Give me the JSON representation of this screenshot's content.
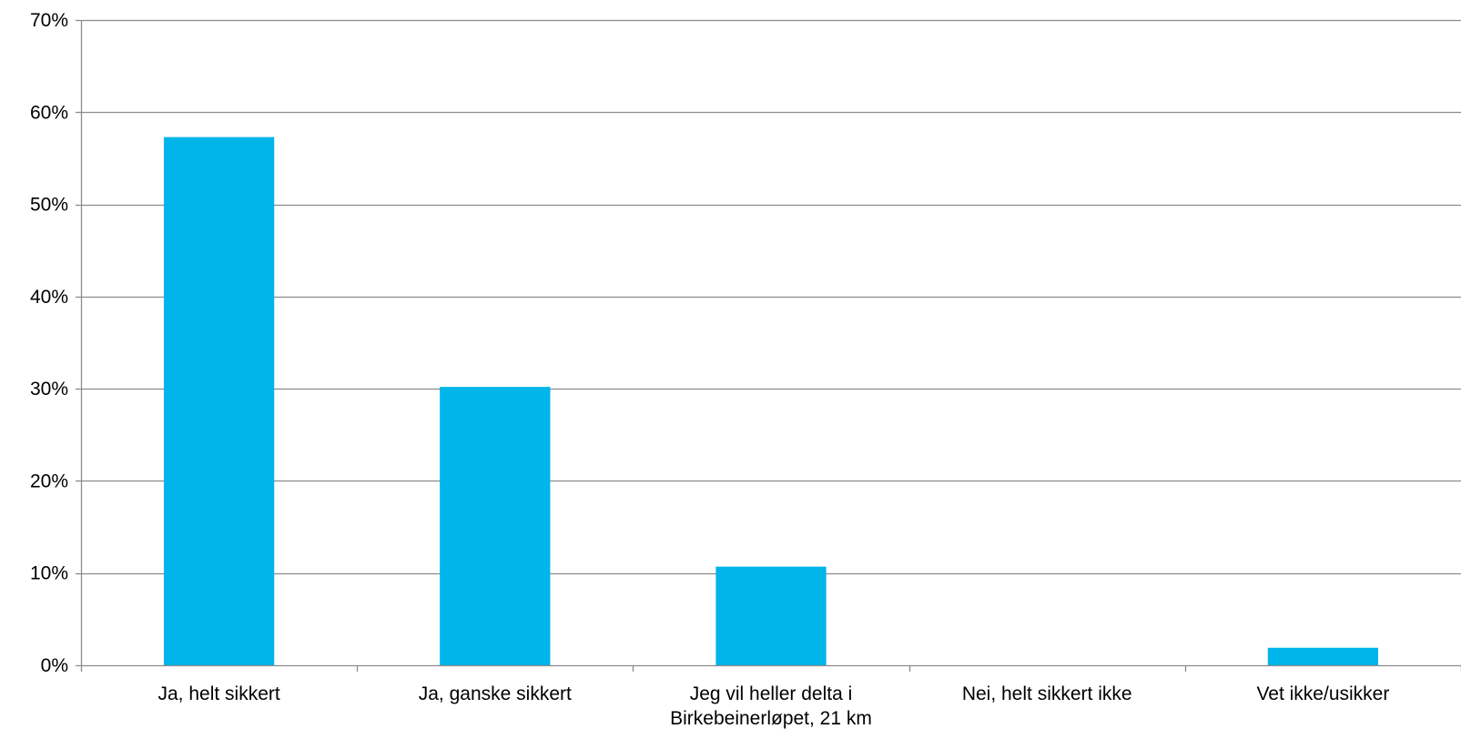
{
  "chart_data": {
    "type": "bar",
    "categories": [
      [
        "Ja, helt sikkert"
      ],
      [
        "Ja, ganske sikkert"
      ],
      [
        "Jeg vil heller delta i",
        "Birkebeinerløpet, 21 km"
      ],
      [
        "Nei, helt sikkert ikke"
      ],
      [
        "Vet ikke/usikker"
      ]
    ],
    "values": [
      57.3,
      30.2,
      10.7,
      0,
      1.9
    ],
    "title": "",
    "xlabel": "",
    "ylabel": "",
    "ylim": [
      0,
      70
    ],
    "yticks": [
      0,
      10,
      20,
      30,
      40,
      50,
      60,
      70
    ],
    "ytick_suffix": "%",
    "grid": true,
    "legend": "none",
    "bar_color": "#00B5EA",
    "grid_color": "#8C8C8C",
    "axis_color": "#8C8C8C"
  }
}
